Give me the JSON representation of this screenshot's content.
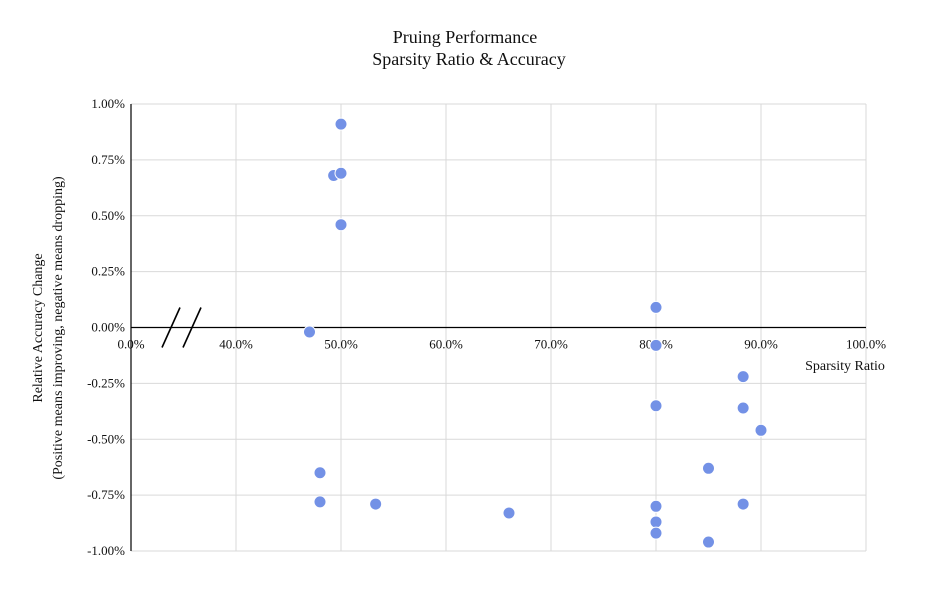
{
  "chart_data": {
    "type": "scatter",
    "title_lines": [
      "Pruing Performance",
      "Sparsity Ratio & Accuracy"
    ],
    "xlabel": "Sparsity Ratio",
    "ylabel_lines": [
      "Relative Accuracy Change",
      "(Positive means improving, negative means dropping)"
    ],
    "x_tick_labels": [
      "0.0%",
      "40.0%",
      "50.0%",
      "60.0%",
      "70.0%",
      "80.0%",
      "90.0%",
      "100.0%"
    ],
    "y_tick_labels": [
      "1.00%",
      "0.75%",
      "0.50%",
      "0.25%",
      "0.00%",
      "-0.25%",
      "-0.50%",
      "-0.75%",
      "-1.00%"
    ],
    "xlim": [
      0.3,
      1.0
    ],
    "ylim": [
      -1.0,
      1.0
    ],
    "x_axis_break": true,
    "grid": true,
    "point_color": "#7391e6",
    "points": [
      {
        "x": 0.5,
        "y": 0.91
      },
      {
        "x": 0.493,
        "y": 0.68
      },
      {
        "x": 0.5,
        "y": 0.69
      },
      {
        "x": 0.5,
        "y": 0.46
      },
      {
        "x": 0.47,
        "y": -0.02
      },
      {
        "x": 0.48,
        "y": -0.65
      },
      {
        "x": 0.48,
        "y": -0.78
      },
      {
        "x": 0.533,
        "y": -0.79
      },
      {
        "x": 0.66,
        "y": -0.83
      },
      {
        "x": 0.8,
        "y": 0.09
      },
      {
        "x": 0.8,
        "y": -0.08
      },
      {
        "x": 0.8,
        "y": -0.35
      },
      {
        "x": 0.8,
        "y": -0.8
      },
      {
        "x": 0.8,
        "y": -0.87
      },
      {
        "x": 0.8,
        "y": -0.92
      },
      {
        "x": 0.85,
        "y": -0.63
      },
      {
        "x": 0.85,
        "y": -0.96
      },
      {
        "x": 0.883,
        "y": -0.22
      },
      {
        "x": 0.883,
        "y": -0.36
      },
      {
        "x": 0.883,
        "y": -0.79
      },
      {
        "x": 0.9,
        "y": -0.46
      }
    ]
  }
}
